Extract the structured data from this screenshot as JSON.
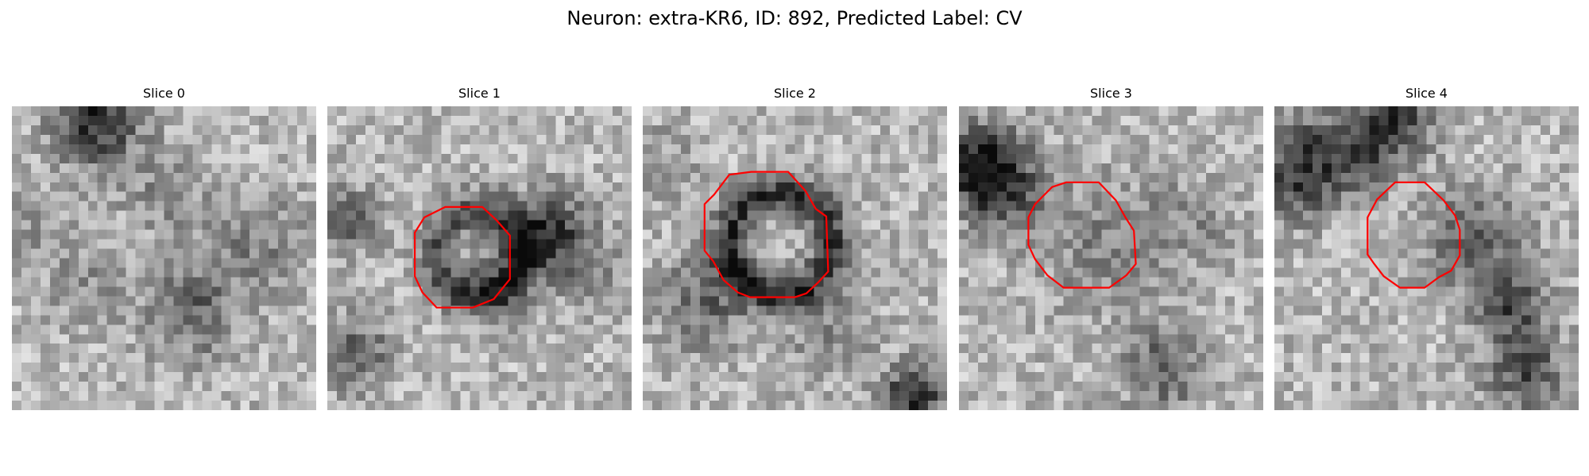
{
  "figure": {
    "title": "Neuron: extra-KR6, ID: 892, Predicted Label: CV",
    "overlay_color": "#ff0000"
  },
  "panels": [
    {
      "title": "Slice 0",
      "has_contour": false
    },
    {
      "title": "Slice 1",
      "has_contour": true
    },
    {
      "title": "Slice 2",
      "has_contour": true
    },
    {
      "title": "Slice 3",
      "has_contour": true
    },
    {
      "title": "Slice 4",
      "has_contour": true
    }
  ]
}
